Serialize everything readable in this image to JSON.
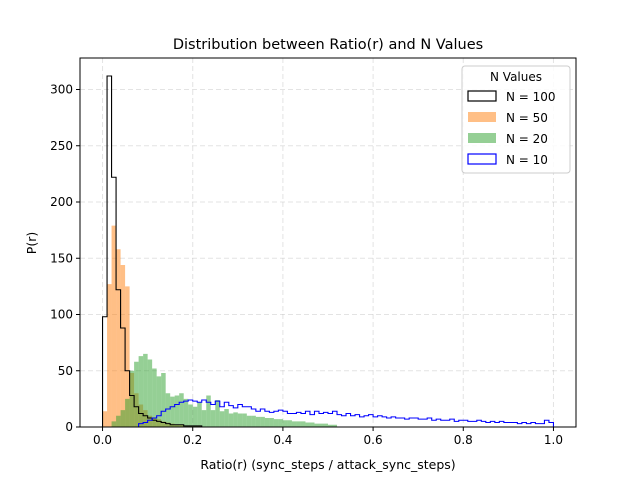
{
  "chart_data": {
    "type": "bar",
    "title": "Distribution between Ratio(r) and N Values",
    "xlabel": "Ratio(r) (sync_steps / attack_sync_steps)",
    "ylabel": "P(r)",
    "xlim": [
      -0.05,
      1.05
    ],
    "ylim": [
      0,
      328
    ],
    "x_ticks": [
      0.0,
      0.2,
      0.4,
      0.6,
      0.8,
      1.0
    ],
    "x_tick_labels": [
      "0.0",
      "0.2",
      "0.4",
      "0.6",
      "0.8",
      "1.0"
    ],
    "y_ticks": [
      0,
      50,
      100,
      150,
      200,
      250,
      300
    ],
    "y_tick_labels": [
      "0",
      "50",
      "100",
      "150",
      "200",
      "250",
      "300"
    ],
    "grid": true,
    "legend": {
      "title": "N Values",
      "position": "top-right"
    },
    "bin_width": 0.01,
    "series": [
      {
        "name": "N = 100",
        "style": "step",
        "color": "#000000",
        "x_start": 0.0,
        "values": [
          98,
          312,
          222,
          122,
          88,
          50,
          28,
          18,
          12,
          10,
          8,
          6,
          5,
          4,
          3,
          2,
          2,
          2,
          1,
          1,
          1,
          1
        ]
      },
      {
        "name": "N = 50",
        "style": "filled",
        "color": "#ff7f0e",
        "x_start": 0.0,
        "values": [
          14,
          127,
          179,
          158,
          144,
          125,
          48,
          30,
          20,
          15,
          10,
          8,
          7,
          5,
          4,
          3,
          2,
          2,
          1,
          1,
          1,
          1
        ]
      },
      {
        "name": "N = 20",
        "style": "filled",
        "color": "#2ca02c",
        "x_start": 0.02,
        "values": [
          5,
          10,
          15,
          25,
          50,
          58,
          63,
          65,
          60,
          52,
          45,
          48,
          30,
          27,
          28,
          30,
          25,
          20,
          18,
          22,
          15,
          28,
          15,
          24,
          14,
          16,
          12,
          13,
          12,
          12,
          10,
          10,
          9,
          9,
          8,
          8,
          7,
          7,
          6,
          6,
          5,
          5,
          5,
          4,
          4,
          3,
          3,
          3,
          2,
          2
        ]
      },
      {
        "name": "N = 10",
        "style": "step",
        "color": "#0000ff",
        "x_start": 0.0,
        "values": [
          0,
          0,
          0,
          0,
          0,
          0,
          0,
          0,
          3,
          4,
          6,
          8,
          10,
          14,
          16,
          18,
          20,
          22,
          23,
          24,
          23,
          22,
          24,
          22,
          20,
          23,
          18,
          22,
          19,
          17,
          20,
          18,
          18,
          16,
          14,
          16,
          14,
          13,
          14,
          15,
          14,
          12,
          12,
          13,
          12,
          14,
          11,
          14,
          12,
          13,
          12,
          14,
          11,
          10,
          12,
          10,
          11,
          9,
          10,
          11,
          9,
          10,
          9,
          8,
          9,
          8,
          8,
          7,
          8,
          8,
          7,
          7,
          8,
          6,
          7,
          6,
          6,
          7,
          5,
          6,
          6,
          5,
          5,
          6,
          5,
          4,
          5,
          4,
          5,
          4,
          4,
          4,
          3,
          4,
          3,
          4,
          3,
          3,
          6,
          4
        ]
      }
    ]
  }
}
